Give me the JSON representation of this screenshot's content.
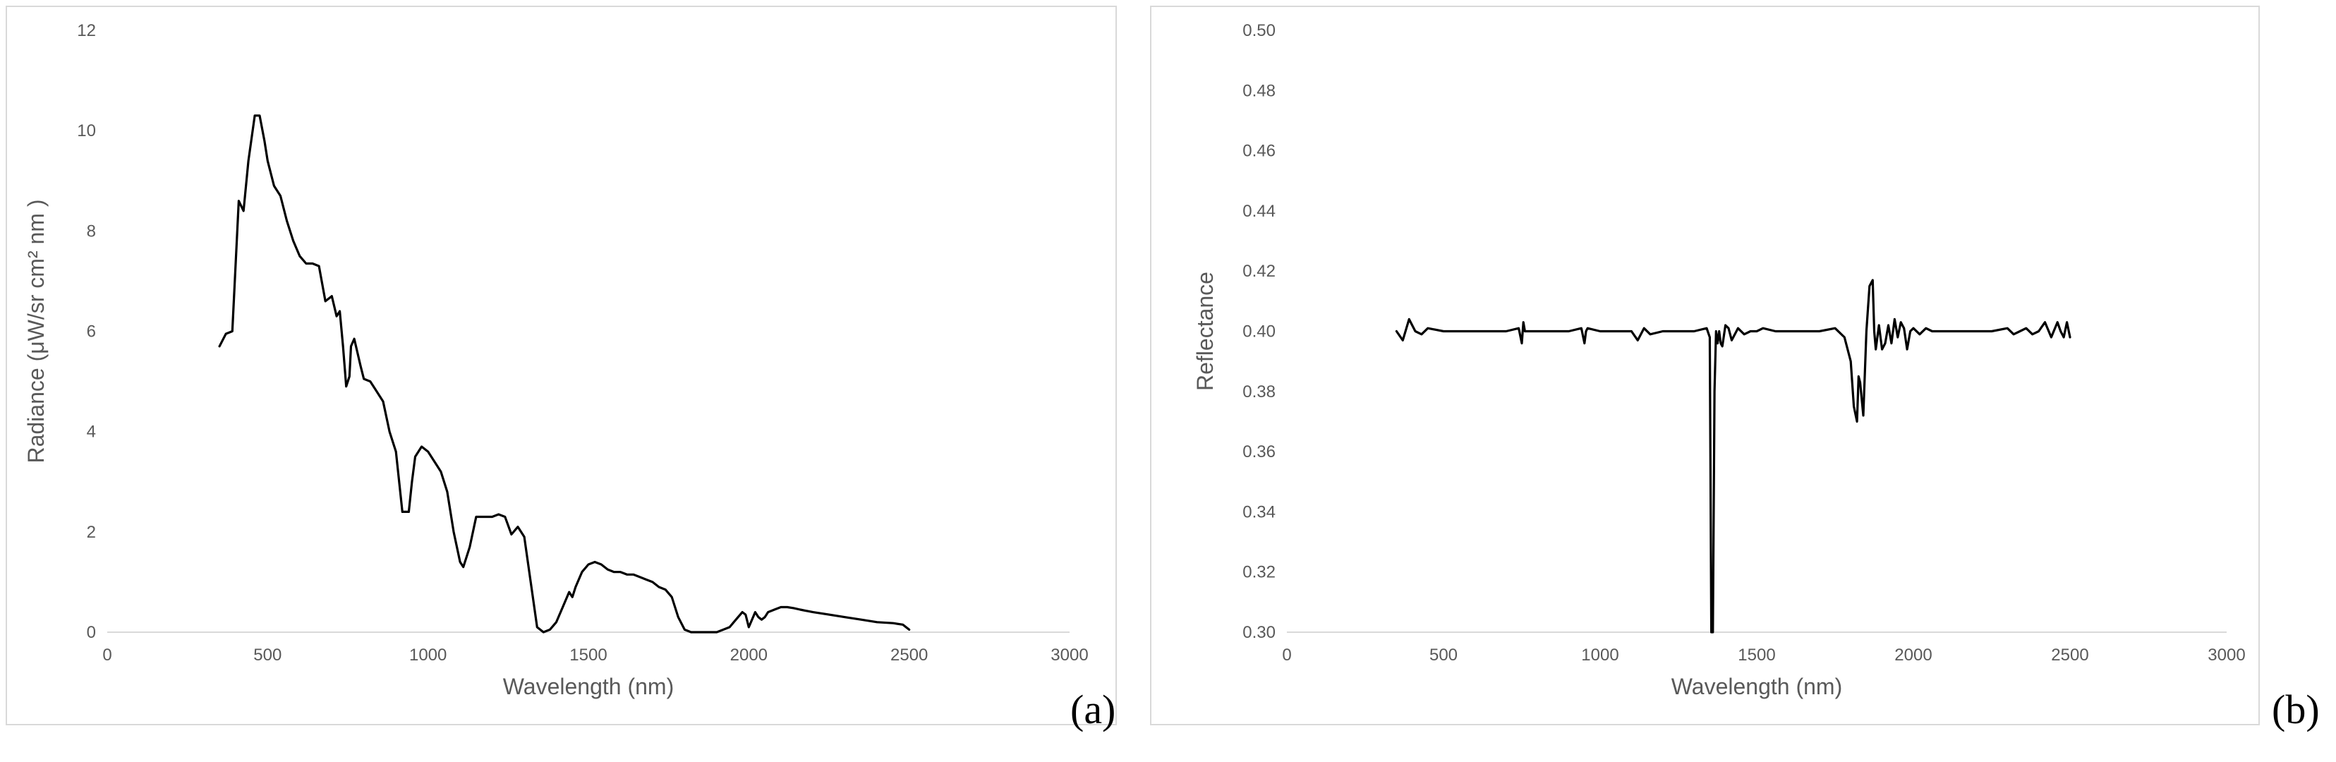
{
  "chart_data": [
    {
      "id": "a",
      "type": "line",
      "panel_label": "(a)",
      "title": "",
      "xlabel": "Wavelength (nm)",
      "ylabel": "Radiance (μW/sr cm² nm )",
      "xlim": [
        0,
        3000
      ],
      "ylim": [
        0,
        12
      ],
      "x_ticks": [
        "0",
        "500",
        "1000",
        "1500",
        "2000",
        "2500",
        "3000"
      ],
      "y_ticks": [
        "0",
        "2",
        "4",
        "6",
        "8",
        "10",
        "12"
      ],
      "grid": false,
      "line_color": "#000000",
      "series": [
        {
          "x": [
            350,
            370,
            390,
            410,
            425,
            440,
            460,
            475,
            490,
            500,
            520,
            540,
            560,
            580,
            600,
            620,
            640,
            660,
            680,
            700,
            715,
            725,
            735,
            745,
            755,
            760,
            770,
            790,
            800,
            820,
            840,
            860,
            880,
            900,
            920,
            940,
            950,
            960,
            980,
            1000,
            1020,
            1040,
            1060,
            1080,
            1100,
            1110,
            1130,
            1150,
            1170,
            1200,
            1220,
            1240,
            1260,
            1280,
            1300,
            1320,
            1340,
            1360,
            1380,
            1400,
            1420,
            1440,
            1450,
            1460,
            1480,
            1500,
            1520,
            1540,
            1560,
            1580,
            1600,
            1620,
            1640,
            1660,
            1680,
            1700,
            1720,
            1740,
            1760,
            1780,
            1800,
            1820,
            1840,
            1860,
            1900,
            1940,
            1960,
            1980,
            1990,
            2000,
            2010,
            2020,
            2030,
            2040,
            2050,
            2060,
            2080,
            2100,
            2120,
            2140,
            2160,
            2200,
            2250,
            2300,
            2350,
            2400,
            2450,
            2480,
            2500
          ],
          "y": [
            5.7,
            5.95,
            6.0,
            8.6,
            8.4,
            9.4,
            10.3,
            10.3,
            9.8,
            9.4,
            8.9,
            8.7,
            8.2,
            7.8,
            7.5,
            7.35,
            7.35,
            7.3,
            6.6,
            6.7,
            6.3,
            6.4,
            5.7,
            4.9,
            5.1,
            5.7,
            5.85,
            5.3,
            5.05,
            5.0,
            4.8,
            4.6,
            4.0,
            3.6,
            2.4,
            2.4,
            3.0,
            3.5,
            3.7,
            3.6,
            3.4,
            3.2,
            2.8,
            2.0,
            1.4,
            1.3,
            1.7,
            2.3,
            2.3,
            2.3,
            2.35,
            2.3,
            1.95,
            2.1,
            1.9,
            1.0,
            0.1,
            0.0,
            0.05,
            0.2,
            0.5,
            0.8,
            0.7,
            0.9,
            1.2,
            1.35,
            1.4,
            1.35,
            1.25,
            1.2,
            1.2,
            1.15,
            1.15,
            1.1,
            1.05,
            1.0,
            0.9,
            0.85,
            0.7,
            0.3,
            0.05,
            0.0,
            0.0,
            0.0,
            0.0,
            0.1,
            0.25,
            0.4,
            0.35,
            0.1,
            0.25,
            0.4,
            0.3,
            0.25,
            0.3,
            0.4,
            0.45,
            0.5,
            0.5,
            0.48,
            0.45,
            0.4,
            0.35,
            0.3,
            0.25,
            0.2,
            0.18,
            0.15,
            0.05
          ]
        }
      ]
    },
    {
      "id": "b",
      "type": "line",
      "panel_label": "(b)",
      "title": "",
      "xlabel": "Wavelength (nm)",
      "ylabel": "Reflectance",
      "xlim": [
        0,
        3000
      ],
      "ylim": [
        0.3,
        0.5
      ],
      "x_ticks": [
        "0",
        "500",
        "1000",
        "1500",
        "2000",
        "2500",
        "3000"
      ],
      "y_ticks": [
        "0.30",
        "0.32",
        "0.34",
        "0.36",
        "0.38",
        "0.40",
        "0.42",
        "0.44",
        "0.46",
        "0.48",
        "0.50"
      ],
      "grid": false,
      "line_color": "#000000",
      "series": [
        {
          "x": [
            350,
            370,
            390,
            410,
            430,
            450,
            500,
            550,
            600,
            650,
            700,
            740,
            750,
            755,
            760,
            800,
            850,
            900,
            940,
            950,
            955,
            960,
            1000,
            1050,
            1100,
            1120,
            1140,
            1160,
            1200,
            1250,
            1300,
            1340,
            1350,
            1355,
            1360,
            1365,
            1370,
            1375,
            1380,
            1385,
            1390,
            1400,
            1410,
            1420,
            1440,
            1460,
            1480,
            1500,
            1520,
            1560,
            1600,
            1650,
            1700,
            1750,
            1780,
            1800,
            1810,
            1820,
            1825,
            1830,
            1840,
            1850,
            1860,
            1870,
            1875,
            1880,
            1890,
            1900,
            1910,
            1920,
            1930,
            1940,
            1950,
            1960,
            1970,
            1980,
            1990,
            2000,
            2020,
            2040,
            2060,
            2100,
            2150,
            2200,
            2250,
            2300,
            2320,
            2340,
            2360,
            2380,
            2400,
            2420,
            2440,
            2460,
            2470,
            2480,
            2490,
            2500
          ],
          "y": [
            0.4,
            0.397,
            0.404,
            0.4,
            0.399,
            0.401,
            0.4,
            0.4,
            0.4,
            0.4,
            0.4,
            0.401,
            0.396,
            0.403,
            0.4,
            0.4,
            0.4,
            0.4,
            0.401,
            0.396,
            0.4,
            0.401,
            0.4,
            0.4,
            0.4,
            0.397,
            0.401,
            0.399,
            0.4,
            0.4,
            0.4,
            0.401,
            0.398,
            0.3,
            0.3,
            0.38,
            0.4,
            0.396,
            0.4,
            0.396,
            0.395,
            0.402,
            0.401,
            0.397,
            0.401,
            0.399,
            0.4,
            0.4,
            0.401,
            0.4,
            0.4,
            0.4,
            0.4,
            0.401,
            0.398,
            0.39,
            0.375,
            0.37,
            0.385,
            0.383,
            0.372,
            0.4,
            0.415,
            0.417,
            0.4,
            0.394,
            0.402,
            0.394,
            0.396,
            0.402,
            0.396,
            0.404,
            0.398,
            0.403,
            0.401,
            0.394,
            0.4,
            0.401,
            0.399,
            0.401,
            0.4,
            0.4,
            0.4,
            0.4,
            0.4,
            0.401,
            0.399,
            0.4,
            0.401,
            0.399,
            0.4,
            0.403,
            0.398,
            0.403,
            0.4,
            0.398,
            0.403,
            0.398
          ]
        }
      ]
    }
  ]
}
